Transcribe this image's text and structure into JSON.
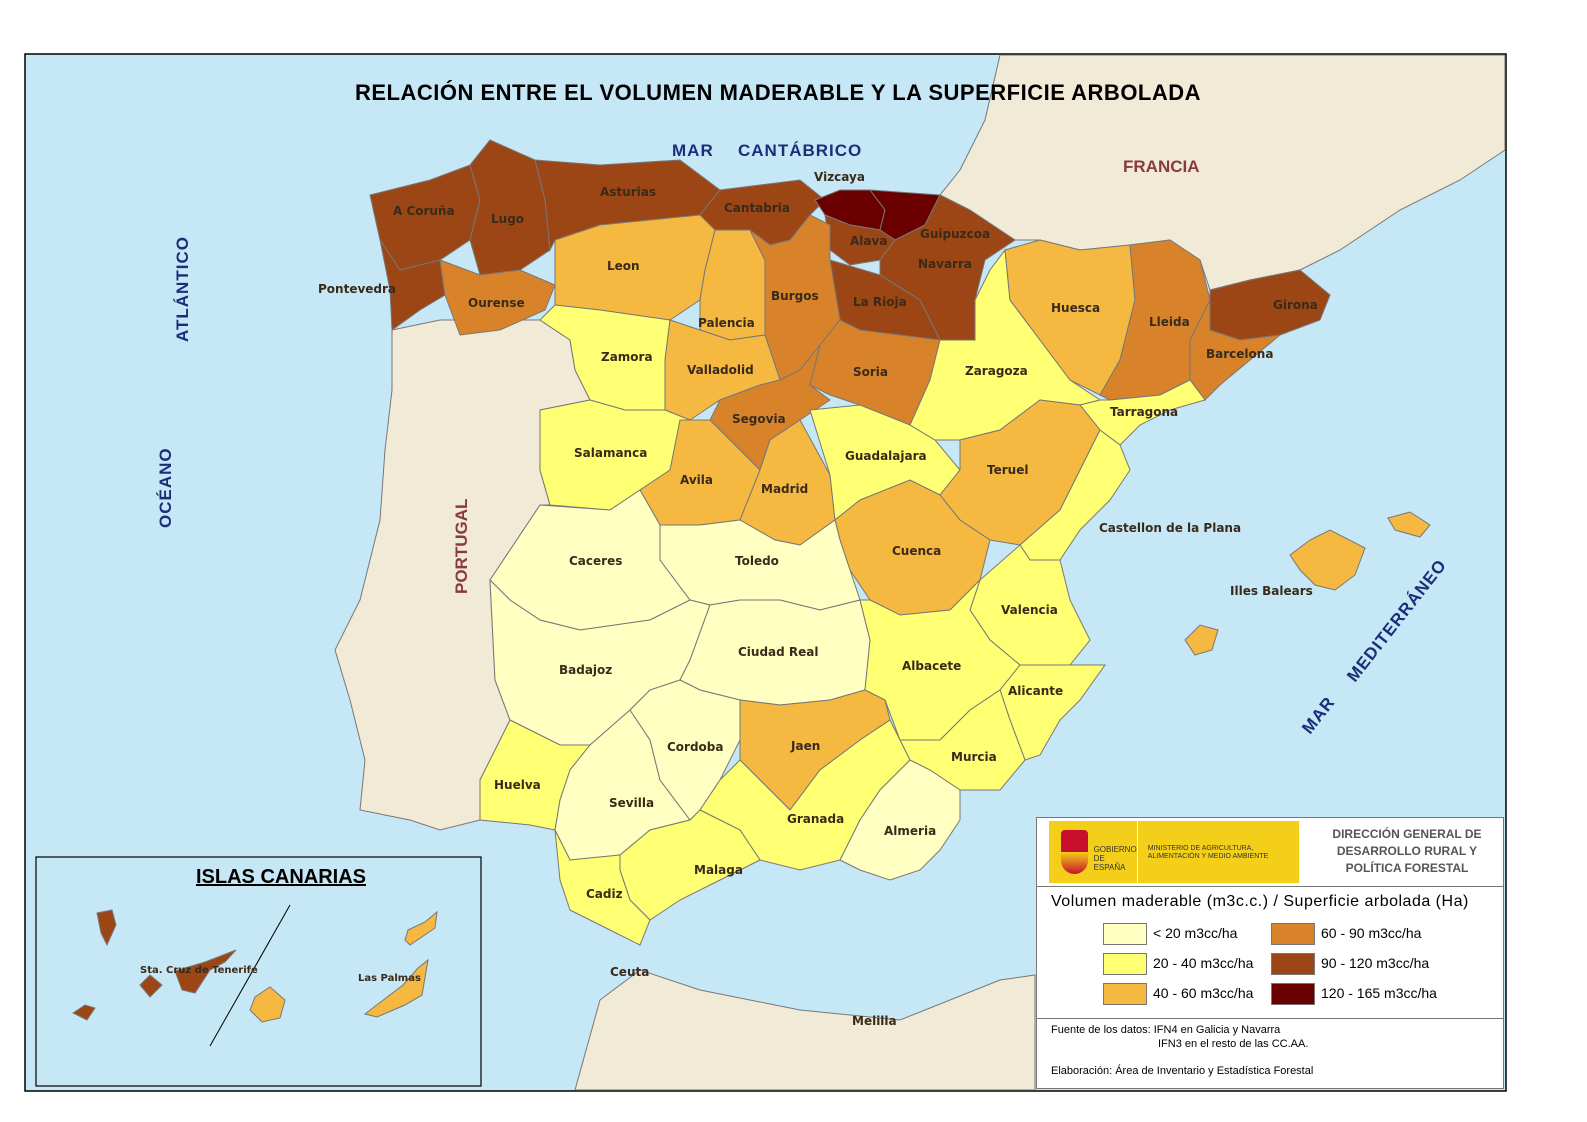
{
  "title": "RELACIÓN ENTRE EL VOLUMEN MADERABLE Y LA SUPERFICIE ARBOLADA",
  "colors": {
    "sea": "#c6e7f5",
    "land": "#f1ead6",
    "border": "#777777",
    "classes": [
      "#ffffc2",
      "#ffff73",
      "#f5b841",
      "#d8832a",
      "#9c4615",
      "#6b0000"
    ]
  },
  "seas": {
    "cantabrico_1": "MAR",
    "cantabrico_2": "CANTÁBRICO",
    "atlantico_1": "ATLÁNTICO",
    "atlantico_2": "OCÉANO",
    "med_1": "MAR",
    "med_2": "MEDITERRÁNEO"
  },
  "countries": {
    "francia": "FRANCIA",
    "portugal": "PORTUGAL"
  },
  "cities": {
    "ceuta": "Ceuta",
    "melilla": "Melilla"
  },
  "provinces": [
    {
      "name": "A Coruña",
      "class": 4
    },
    {
      "name": "Lugo",
      "class": 4
    },
    {
      "name": "Pontevedra",
      "class": 4
    },
    {
      "name": "Ourense",
      "class": 3
    },
    {
      "name": "Asturias",
      "class": 4
    },
    {
      "name": "Cantabria",
      "class": 4
    },
    {
      "name": "Vizcaya",
      "class": 5
    },
    {
      "name": "Guipuzcoa",
      "class": 5
    },
    {
      "name": "Alava",
      "class": 4
    },
    {
      "name": "Navarra",
      "class": 4
    },
    {
      "name": "La Rioja",
      "class": 4
    },
    {
      "name": "Leon",
      "class": 2
    },
    {
      "name": "Palencia",
      "class": 2
    },
    {
      "name": "Burgos",
      "class": 3
    },
    {
      "name": "Zamora",
      "class": 1
    },
    {
      "name": "Valladolid",
      "class": 2
    },
    {
      "name": "Soria",
      "class": 3
    },
    {
      "name": "Segovia",
      "class": 3
    },
    {
      "name": "Salamanca",
      "class": 1
    },
    {
      "name": "Avila",
      "class": 2
    },
    {
      "name": "Madrid",
      "class": 2
    },
    {
      "name": "Guadalajara",
      "class": 1
    },
    {
      "name": "Zaragoza",
      "class": 1
    },
    {
      "name": "Huesca",
      "class": 2
    },
    {
      "name": "Lleida",
      "class": 3
    },
    {
      "name": "Girona",
      "class": 4
    },
    {
      "name": "Barcelona",
      "class": 3
    },
    {
      "name": "Tarragona",
      "class": 1
    },
    {
      "name": "Teruel",
      "class": 2
    },
    {
      "name": "Castellon de la Plana",
      "class": 1
    },
    {
      "name": "Cuenca",
      "class": 2
    },
    {
      "name": "Caceres",
      "class": 0
    },
    {
      "name": "Toledo",
      "class": 0
    },
    {
      "name": "Valencia",
      "class": 1
    },
    {
      "name": "Badajoz",
      "class": 0
    },
    {
      "name": "Ciudad Real",
      "class": 0
    },
    {
      "name": "Albacete",
      "class": 1
    },
    {
      "name": "Alicante",
      "class": 1
    },
    {
      "name": "Murcia",
      "class": 1
    },
    {
      "name": "Huelva",
      "class": 1
    },
    {
      "name": "Sevilla",
      "class": 0
    },
    {
      "name": "Cordoba",
      "class": 0
    },
    {
      "name": "Jaen",
      "class": 2
    },
    {
      "name": "Granada",
      "class": 1
    },
    {
      "name": "Almeria",
      "class": 0
    },
    {
      "name": "Malaga",
      "class": 1
    },
    {
      "name": "Cadiz",
      "class": 1
    },
    {
      "name": "Illes Balears",
      "class": 2
    }
  ],
  "canarias": {
    "title": "ISLAS CANARIAS",
    "provinces": [
      {
        "name": "Sta. Cruz de Tenerife",
        "class": 4
      },
      {
        "name": "Las Palmas",
        "class": 2
      }
    ]
  },
  "legend": {
    "logo_gob": "GOBIERNO DE ESPAÑA",
    "logo_min": "MINISTERIO DE AGRICULTURA, ALIMENTACIÓN Y MEDIO AMBIENTE",
    "org": "DIRECCIÓN GENERAL DE DESARROLLO RURAL Y POLÍTICA FORESTAL",
    "title": "Volumen maderable (m3c.c.) / Superficie arbolada (Ha)",
    "classes": [
      "< 20 m3cc/ha",
      "20 - 40 m3cc/ha",
      "40 - 60 m3cc/ha",
      "60 - 90 m3cc/ha",
      "90 - 120 m3cc/ha",
      "120 - 165 m3cc/ha"
    ],
    "source_1": "Fuente de los datos: IFN4 en Galicia y Navarra",
    "source_2": "IFN3 en el resto de las CC.AA.",
    "credit": "Elaboración: Área de Inventario y Estadística Forestal"
  }
}
